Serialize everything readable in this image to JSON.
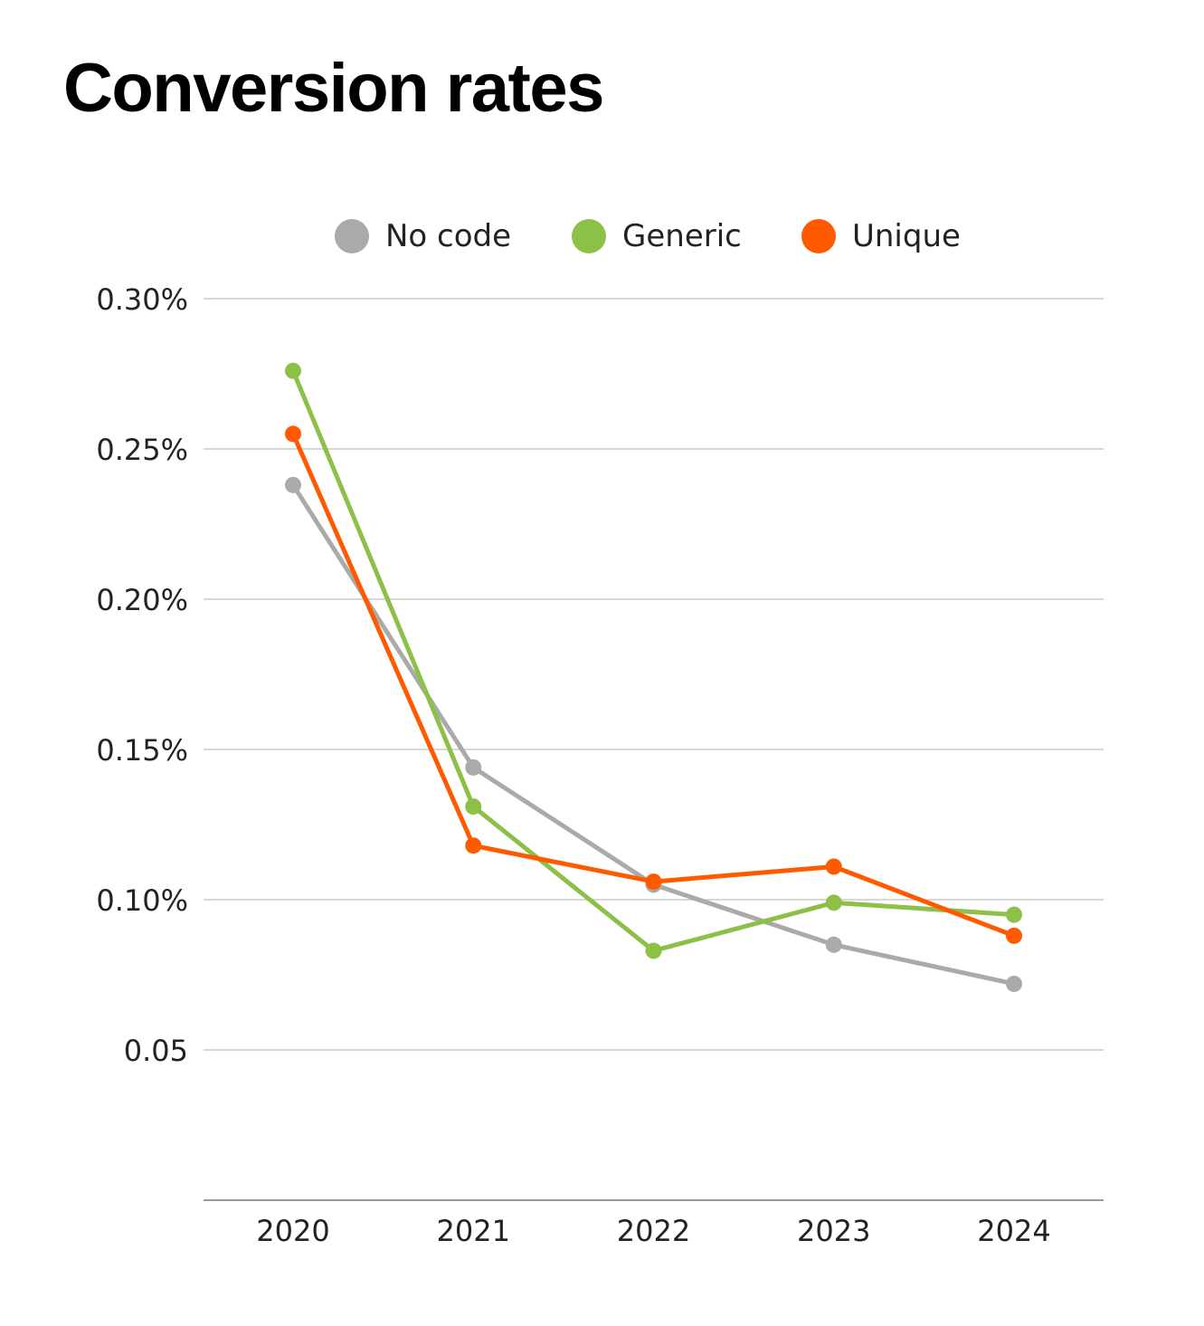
{
  "title": "Conversion rates",
  "chart_data": {
    "type": "line",
    "title": "Conversion rates",
    "xlabel": "",
    "ylabel": "",
    "categories": [
      "2020",
      "2021",
      "2022",
      "2023",
      "2024"
    ],
    "ylim": [
      0.0,
      0.3
    ],
    "yticks": [
      0.3,
      0.25,
      0.2,
      0.15,
      0.1,
      0.05
    ],
    "ytick_labels": [
      "0.30%",
      "0.25%",
      "0.20%",
      "0.15%",
      "0.10%",
      "0.05"
    ],
    "grid": true,
    "legend_position": "top-center",
    "series": [
      {
        "name": "No code",
        "color": "#aaaaaa",
        "values": [
          0.238,
          0.144,
          0.105,
          0.085,
          0.072
        ]
      },
      {
        "name": "Generic",
        "color": "#8dc047",
        "values": [
          0.276,
          0.131,
          0.083,
          0.099,
          0.095
        ]
      },
      {
        "name": "Unique",
        "color": "#ff5a00",
        "values": [
          0.255,
          0.118,
          0.106,
          0.111,
          0.088
        ]
      }
    ]
  }
}
